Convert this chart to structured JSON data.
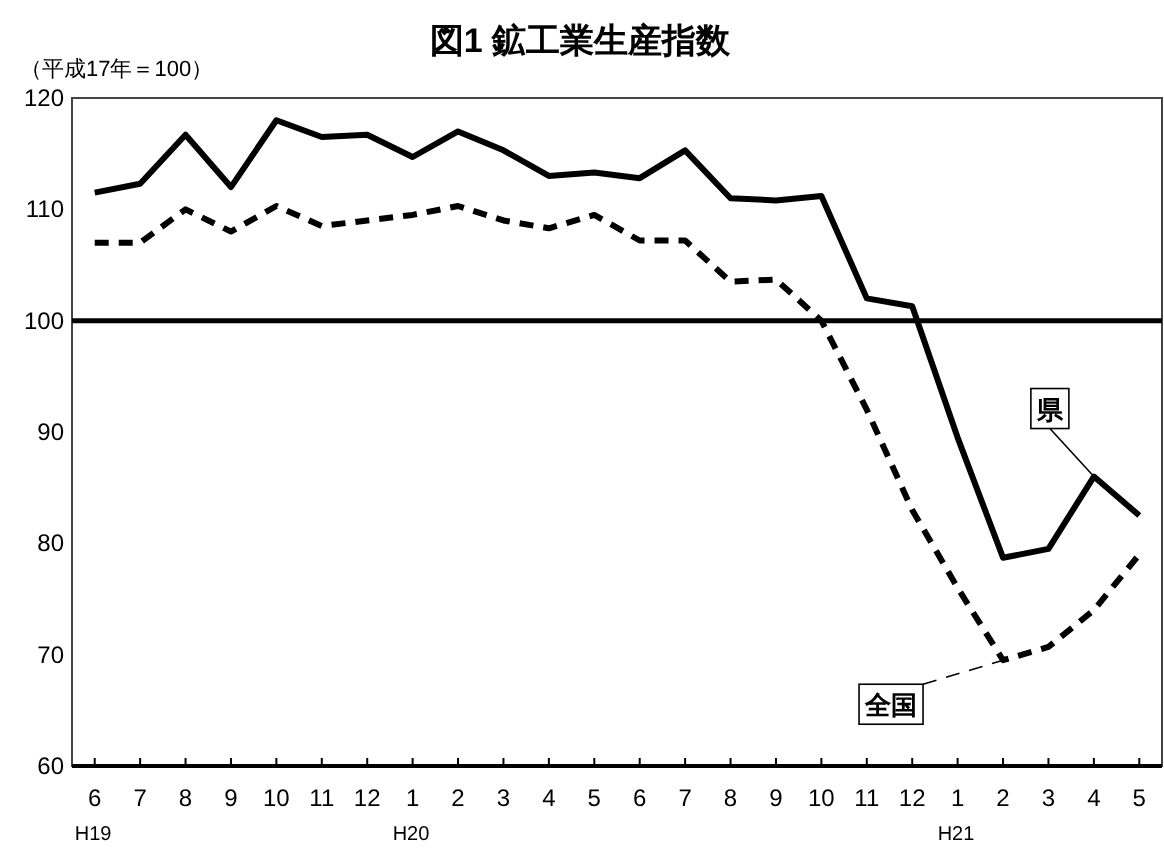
{
  "chart_data": {
    "type": "line",
    "title": "図1 鉱工業生産指数",
    "ylabel": "（平成17年＝100）",
    "categories": [
      "6\nH19",
      "7",
      "8",
      "9",
      "10",
      "11",
      "12",
      "1\nH20",
      "2",
      "3",
      "4",
      "5",
      "6",
      "7",
      "8",
      "9",
      "10",
      "11",
      "12",
      "1\nH21",
      "2",
      "3",
      "4",
      "5"
    ],
    "series": [
      {
        "name": "県",
        "color": "#000000",
        "line_style": "solid",
        "values": [
          111.5,
          112.3,
          116.7,
          112,
          118,
          116.5,
          116.7,
          114.7,
          117,
          115.3,
          113,
          113.3,
          112.8,
          115.3,
          111,
          110.8,
          111.2,
          102,
          101.3,
          89.5,
          78.7,
          79.5,
          86,
          82.5
        ]
      },
      {
        "name": "全国",
        "color": "#000000",
        "line_style": "dashed",
        "values": [
          107,
          107,
          110,
          108,
          110.3,
          108.5,
          109,
          109.5,
          110.3,
          109,
          108.3,
          109.5,
          107.2,
          107.2,
          103.5,
          103.7,
          100,
          92,
          83,
          76,
          69.5,
          70.7,
          74,
          79
        ]
      }
    ],
    "ylim": [
      60,
      120
    ],
    "yticks": [
      60,
      70,
      80,
      90,
      100,
      110,
      120
    ],
    "ref_lines": [
      {
        "axis": "y",
        "value": 100,
        "color": "#000000",
        "line_style": "solid"
      }
    ],
    "grid": false,
    "legend": false
  }
}
